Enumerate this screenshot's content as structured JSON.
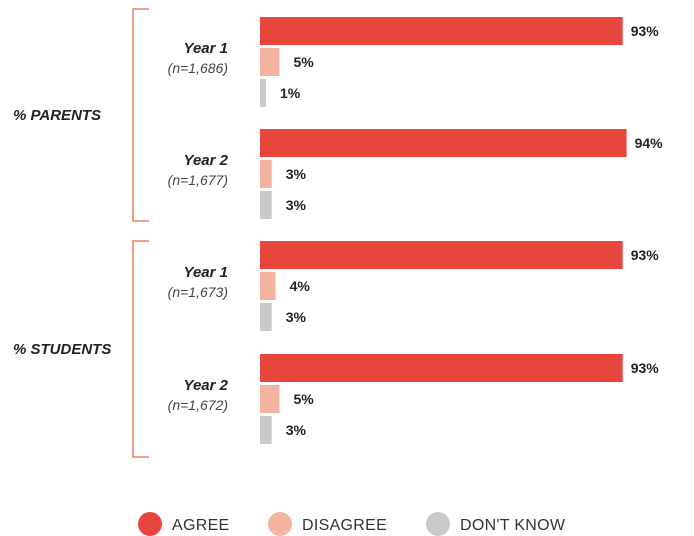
{
  "chart_data": {
    "type": "bar",
    "orientation": "horizontal",
    "groups": [
      {
        "label": "% PARENTS",
        "subgroups": [
          {
            "year": "Year 1",
            "n": "(n=1,686)",
            "values": [
              93,
              5,
              1
            ],
            "labels": [
              "93%",
              "5%",
              "1%"
            ]
          },
          {
            "year": "Year 2",
            "n": "(n=1,677)",
            "values": [
              94,
              3,
              3
            ],
            "labels": [
              "94%",
              "3%",
              "3%"
            ]
          }
        ]
      },
      {
        "label": "% STUDENTS",
        "subgroups": [
          {
            "year": "Year 1",
            "n": "(n=1,673)",
            "values": [
              93,
              4,
              3
            ],
            "labels": [
              "93%",
              "4%",
              "3%"
            ]
          },
          {
            "year": "Year 2",
            "n": "(n=1,672)",
            "values": [
              93,
              5,
              3
            ],
            "labels": [
              "93%",
              "5%",
              "3%"
            ]
          }
        ]
      }
    ],
    "series": [
      {
        "name": "AGREE",
        "color": "#e8453c"
      },
      {
        "name": "DISAGREE",
        "color": "#f4b3a0"
      },
      {
        "name": "DON'T KNOW",
        "color": "#c9c9c9"
      }
    ],
    "xlim": [
      0,
      100
    ],
    "grid": false,
    "legend_position": "bottom"
  }
}
